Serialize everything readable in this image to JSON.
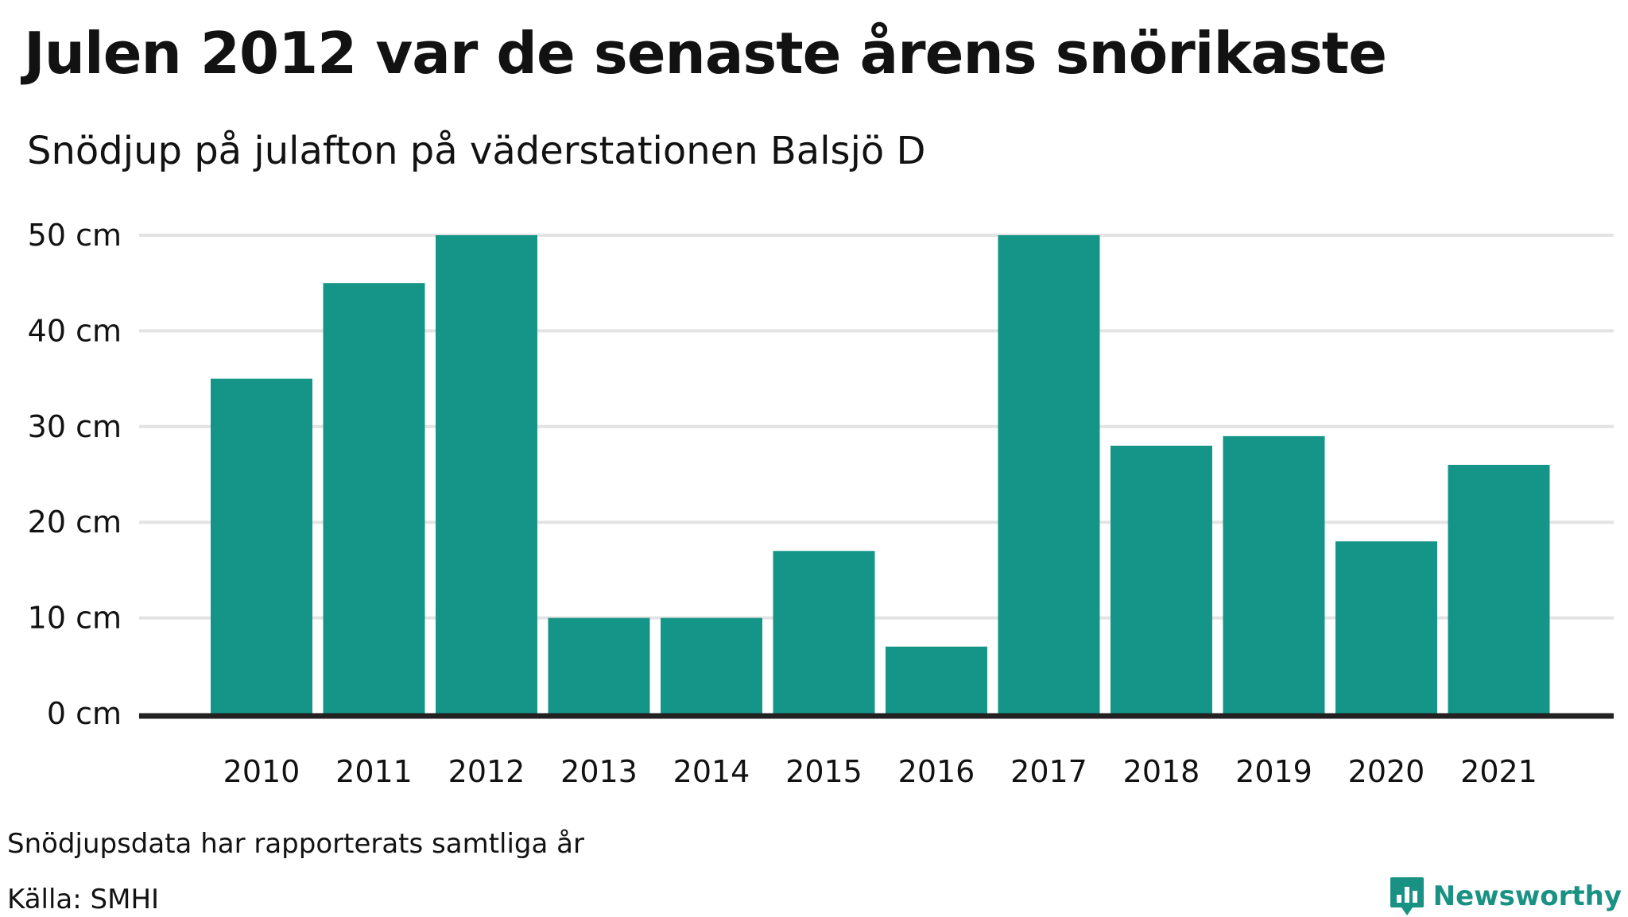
{
  "title": "Julen 2012 var de senaste årens snörikaste",
  "subtitle": "Snödjup på julafton på väderstationen Balsjö D",
  "note": "Snödjupsdata har rapporterats samtliga år",
  "source": "Källa: SMHI",
  "brand": "Newsworthy",
  "colors": {
    "bar": "#159588",
    "grid": "#e3e3e3",
    "axis": "#222222",
    "brand": "#1a9283"
  },
  "chart_data": {
    "type": "bar",
    "categories": [
      "2010",
      "2011",
      "2012",
      "2013",
      "2014",
      "2015",
      "2016",
      "2017",
      "2018",
      "2019",
      "2020",
      "2021"
    ],
    "values": [
      35,
      45,
      50,
      10,
      10,
      17,
      7,
      50,
      28,
      29,
      18,
      26
    ],
    "ylim": [
      0,
      50
    ],
    "yticks": [
      0,
      10,
      20,
      30,
      40,
      50
    ],
    "ytick_labels": [
      "0 cm",
      "10 cm",
      "20 cm",
      "30 cm",
      "40 cm",
      "50 cm"
    ],
    "grid": true,
    "legend": "none"
  }
}
